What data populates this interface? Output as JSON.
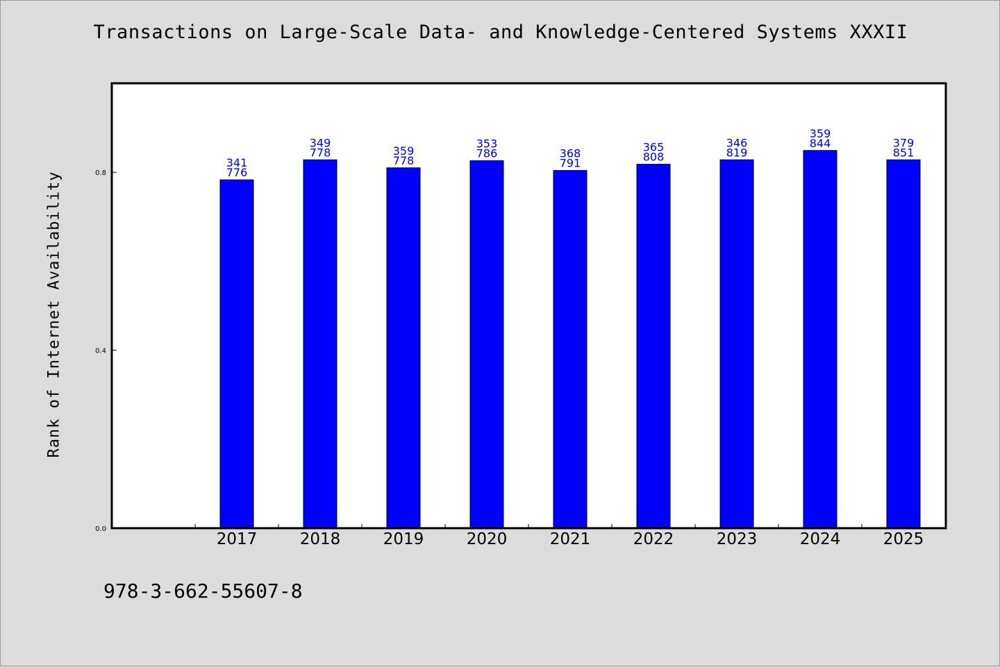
{
  "chart_data": {
    "type": "bar",
    "title": "Transactions on Large-Scale Data- and Knowledge-Centered Systems XXXII",
    "ylabel": "Rank of Internet Availability",
    "xlabel": "",
    "categories": [
      "2017",
      "2018",
      "2019",
      "2020",
      "2021",
      "2022",
      "2023",
      "2024",
      "2025"
    ],
    "values": [
      0.783,
      0.828,
      0.81,
      0.826,
      0.804,
      0.818,
      0.828,
      0.849,
      0.828
    ],
    "data_labels_top": [
      "341",
      "349",
      "359",
      "353",
      "368",
      "365",
      "346",
      "359",
      "379"
    ],
    "data_labels_bottom": [
      "776",
      "778",
      "778",
      "786",
      "791",
      "808",
      "819",
      "844",
      "851"
    ],
    "yticks": [
      "0.0",
      "0.4",
      "0.8"
    ],
    "ytick_values": [
      0.0,
      0.4,
      0.8
    ],
    "ylim": [
      0,
      1.0
    ],
    "grid": false,
    "colors": {
      "bar": "#0000ff",
      "data_label": "#0000cc",
      "background": "#dcdcdc",
      "plot_area": "#ffffff"
    }
  },
  "footer": {
    "isbn": "978-3-662-55607-8"
  }
}
